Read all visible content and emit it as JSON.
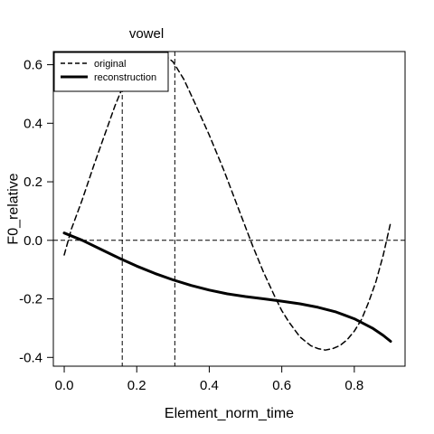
{
  "chart_data": {
    "type": "line",
    "title": "vowel",
    "xlabel": "Element_norm_time",
    "ylabel": "F0_relative",
    "xlim": [
      -0.03,
      0.94
    ],
    "ylim": [
      -0.43,
      0.645
    ],
    "x_ticks": [
      0.0,
      0.2,
      0.4,
      0.6,
      0.8
    ],
    "x_tick_labels": [
      "0.0",
      "0.2",
      "0.4",
      "0.6",
      "0.8"
    ],
    "y_ticks": [
      -0.4,
      -0.2,
      0.0,
      0.2,
      0.4,
      0.6
    ],
    "y_tick_labels": [
      "-0.4",
      "-0.2",
      "0.0",
      "0.2",
      "0.4",
      "0.6"
    ],
    "reference_lines": {
      "horizontal": [
        0.0
      ],
      "vertical": [
        0.16,
        0.305
      ]
    },
    "legend": {
      "position": "top-left",
      "entries": [
        "original",
        "reconstruction"
      ]
    },
    "series": [
      {
        "name": "original",
        "style": "dashed",
        "color": "#000000",
        "x": [
          0.0,
          0.02,
          0.05,
          0.08,
          0.1,
          0.12,
          0.14,
          0.16,
          0.18,
          0.2,
          0.22,
          0.25,
          0.28,
          0.3,
          0.33,
          0.36,
          0.4,
          0.44,
          0.48,
          0.52,
          0.55,
          0.58,
          0.6,
          0.62,
          0.65,
          0.68,
          0.7,
          0.72,
          0.74,
          0.76,
          0.78,
          0.8,
          0.82,
          0.84,
          0.86,
          0.88,
          0.9
        ],
        "y": [
          -0.05,
          0.04,
          0.14,
          0.25,
          0.32,
          0.39,
          0.46,
          0.52,
          0.57,
          0.6,
          0.62,
          0.64,
          0.63,
          0.61,
          0.55,
          0.47,
          0.36,
          0.24,
          0.11,
          -0.02,
          -0.11,
          -0.19,
          -0.24,
          -0.28,
          -0.33,
          -0.36,
          -0.37,
          -0.375,
          -0.37,
          -0.36,
          -0.34,
          -0.31,
          -0.27,
          -0.21,
          -0.14,
          -0.05,
          0.06
        ]
      },
      {
        "name": "reconstruction",
        "style": "solid",
        "color": "#000000",
        "x": [
          0.0,
          0.05,
          0.1,
          0.15,
          0.2,
          0.25,
          0.3,
          0.35,
          0.4,
          0.45,
          0.5,
          0.55,
          0.6,
          0.65,
          0.7,
          0.75,
          0.8,
          0.85,
          0.88,
          0.9
        ],
        "y": [
          0.025,
          0.0,
          -0.03,
          -0.06,
          -0.088,
          -0.113,
          -0.135,
          -0.154,
          -0.17,
          -0.183,
          -0.192,
          -0.2,
          -0.208,
          -0.217,
          -0.229,
          -0.245,
          -0.268,
          -0.3,
          -0.325,
          -0.345
        ]
      }
    ]
  }
}
